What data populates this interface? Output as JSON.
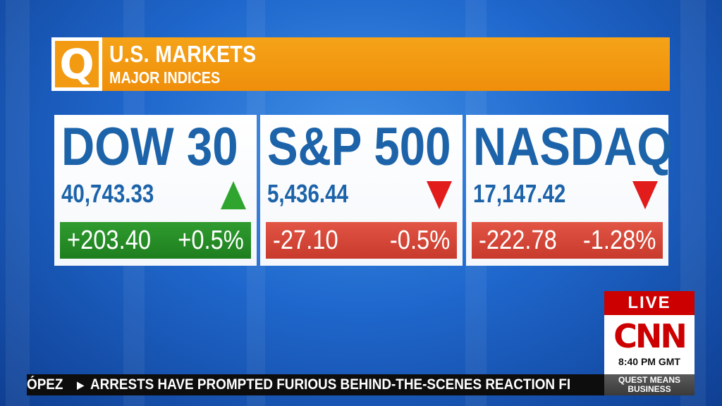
{
  "header": {
    "logo_letter": "Q",
    "title": "U.S. MARKETS",
    "subtitle": "MAJOR INDICES"
  },
  "indices": [
    {
      "name": "DOW 30",
      "value": "40,743.33",
      "direction": "up",
      "change_points": "+203.40",
      "change_percent": "+0.5%"
    },
    {
      "name": "S&P 500",
      "value": "5,436.44",
      "direction": "down",
      "change_points": "-27.10",
      "change_percent": "-0.5%"
    },
    {
      "name": "NASDAQ",
      "value": "17,147.42",
      "direction": "down",
      "change_points": "-222.78",
      "change_percent": "-1.28%"
    }
  ],
  "colors": {
    "up": "#2fa52f",
    "down": "#e21b1b",
    "index_text": "#1c63a9",
    "header_orange": "#f29a12",
    "cnn_red": "#cc0000"
  },
  "bug": {
    "live_label": "LIVE",
    "network_logo": "CNN",
    "time": "8:40 PM GMT",
    "show_line1": "QUEST MEANS",
    "show_line2": "BUSINESS"
  },
  "ticker": {
    "prev_fragment": "ÓPEZ",
    "headline": "ARRESTS HAVE PROMPTED FURIOUS BEHIND-THE-SCENES REACTION FI"
  }
}
